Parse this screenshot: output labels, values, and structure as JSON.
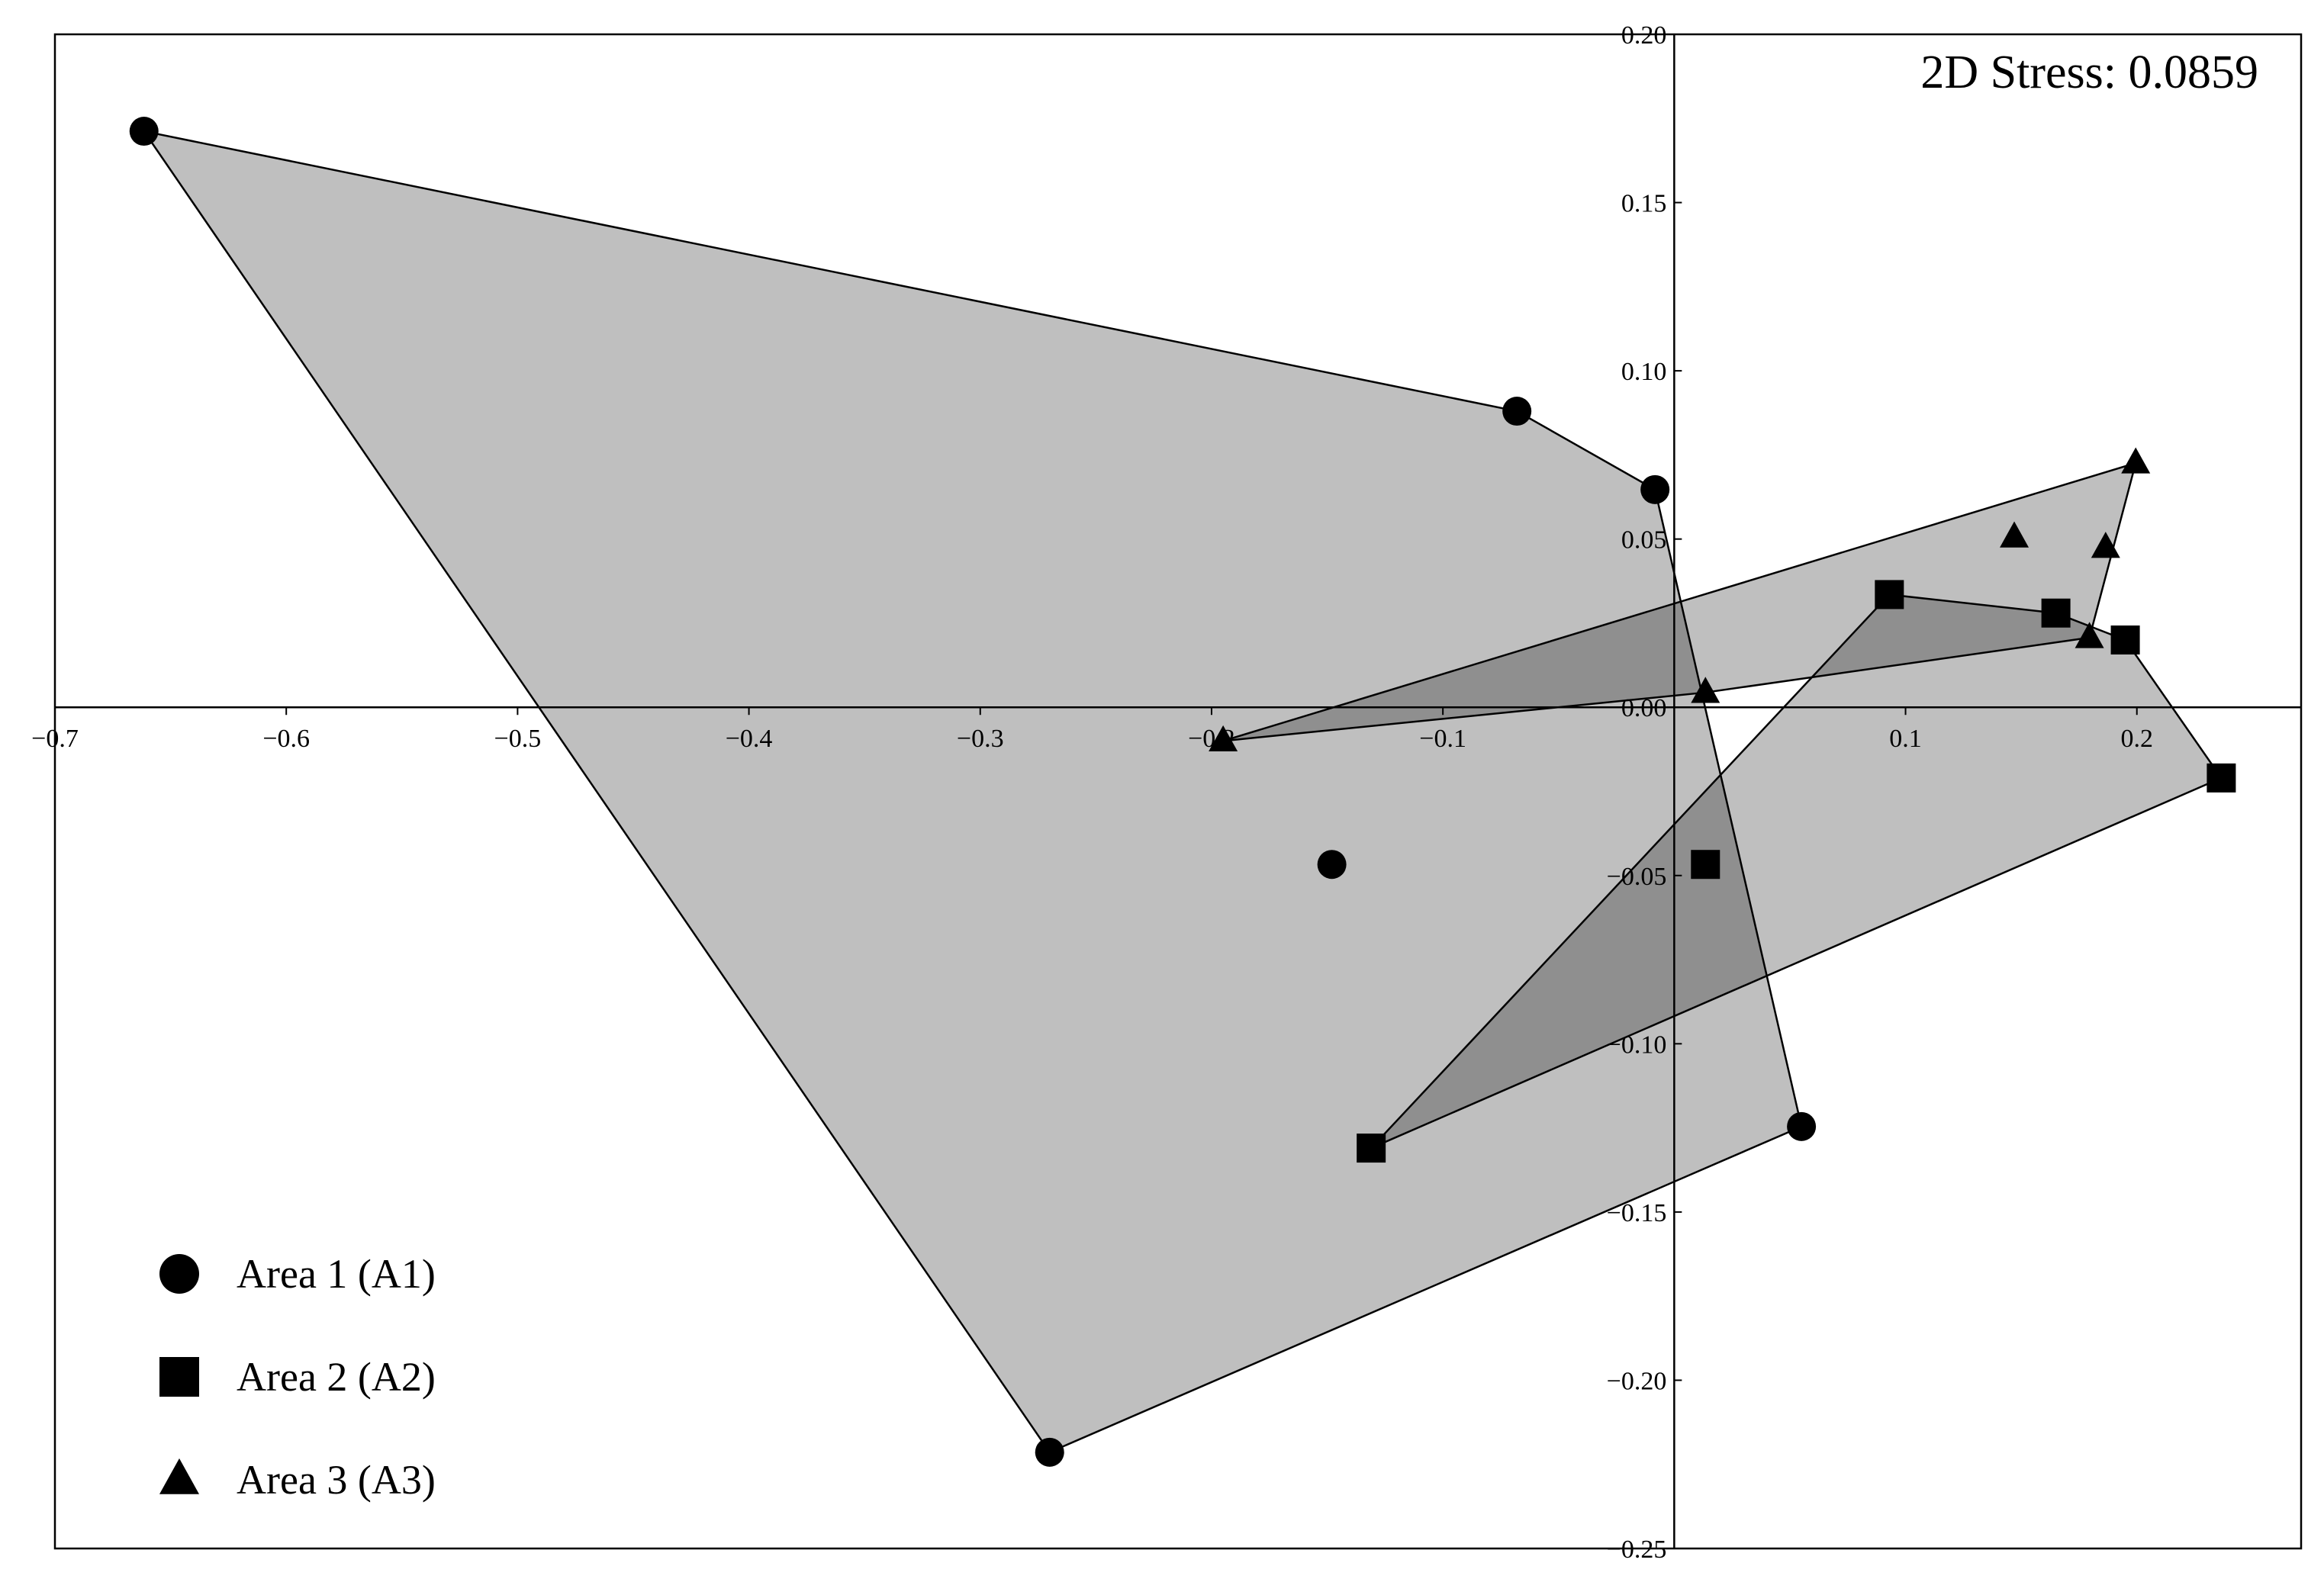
{
  "chart_data": {
    "type": "scatter",
    "annotation": "2D Stress: 0.0859",
    "xlim": [
      -0.7,
      0.271
    ],
    "ylim": [
      -0.25,
      0.2
    ],
    "xticks": [
      {
        "value": -0.7,
        "label": "−0.7"
      },
      {
        "value": -0.6,
        "label": "−0.6"
      },
      {
        "value": -0.5,
        "label": "−0.5"
      },
      {
        "value": -0.4,
        "label": "−0.4"
      },
      {
        "value": -0.3,
        "label": "−0.3"
      },
      {
        "value": -0.2,
        "label": "−0.2"
      },
      {
        "value": -0.1,
        "label": "−0.1"
      },
      0.1,
      0.2
    ],
    "yticks": [
      {
        "value": 0.2,
        "label": "0.20"
      },
      {
        "value": 0.15,
        "label": "0.15"
      },
      {
        "value": 0.1,
        "label": "0.10"
      },
      {
        "value": 0.05,
        "label": "0.05"
      },
      {
        "value": 0,
        "label": "0.00"
      },
      {
        "value": -0.05,
        "label": "−0.05"
      },
      {
        "value": -0.1,
        "label": "−0.10"
      },
      {
        "value": -0.15,
        "label": "−0.15"
      },
      {
        "value": -0.2,
        "label": "−0.20"
      },
      {
        "value": -0.25,
        "label": "−0.25"
      }
    ],
    "legend": "lower left",
    "hull_color": "#000000",
    "hull_opacity": 0.25,
    "series": [
      {
        "name": "Area 1 (A1)",
        "marker": "circle",
        "color": "#000000",
        "x": [
          -0.6615,
          -0.068,
          -0.0083,
          -0.148,
          0.055,
          -0.27
        ],
        "y": [
          0.1712,
          0.088,
          0.0647,
          -0.0467,
          -0.1246,
          -0.2214
        ]
      },
      {
        "name": "Area 2 (A2)",
        "marker": "square",
        "color": "#000000",
        "x": [
          0.093,
          0.165,
          0.195,
          0.2365,
          0.0135,
          -0.131
        ],
        "y": [
          0.0335,
          0.028,
          0.02,
          -0.021,
          -0.0467,
          -0.131
        ]
      },
      {
        "name": "Area 3 (A3)",
        "marker": "triangle",
        "color": "#000000",
        "x": [
          0.1995,
          0.147,
          0.1865,
          0.1795,
          0.0135,
          -0.195
        ],
        "y": [
          0.0726,
          0.0506,
          0.0475,
          0.0207,
          0.0044,
          -0.01
        ]
      }
    ]
  }
}
